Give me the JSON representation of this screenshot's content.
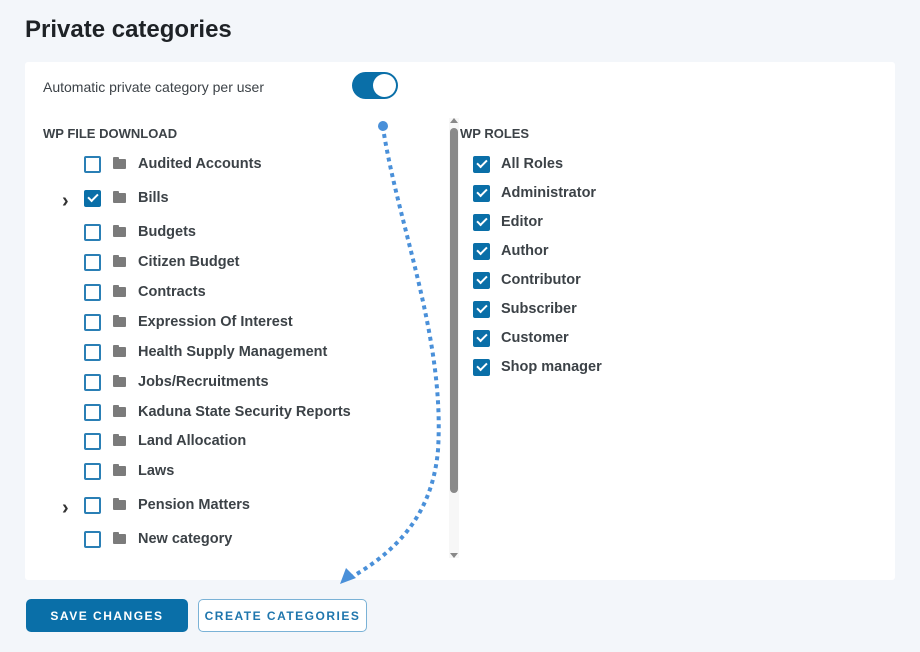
{
  "title": "Private categories",
  "toggle": {
    "label": "Automatic private category per user",
    "on": true
  },
  "wpfd": {
    "heading": "WP FILE DOWNLOAD",
    "items": [
      {
        "label": "Audited Accounts",
        "checked": false,
        "expandable": false
      },
      {
        "label": "Bills",
        "checked": true,
        "expandable": true
      },
      {
        "label": "Budgets",
        "checked": false,
        "expandable": false
      },
      {
        "label": "Citizen Budget",
        "checked": false,
        "expandable": false
      },
      {
        "label": "Contracts",
        "checked": false,
        "expandable": false
      },
      {
        "label": "Expression Of Interest",
        "checked": false,
        "expandable": false
      },
      {
        "label": "Health Supply Management",
        "checked": false,
        "expandable": false
      },
      {
        "label": "Jobs/Recruitments",
        "checked": false,
        "expandable": false
      },
      {
        "label": "Kaduna State Security Reports",
        "checked": false,
        "expandable": false
      },
      {
        "label": "Land Allocation",
        "checked": false,
        "expandable": false
      },
      {
        "label": "Laws",
        "checked": false,
        "expandable": false
      },
      {
        "label": "Pension Matters",
        "checked": false,
        "expandable": true
      },
      {
        "label": "New category",
        "checked": false,
        "expandable": false
      }
    ]
  },
  "roles": {
    "heading": "WP ROLES",
    "items": [
      {
        "label": "All Roles",
        "checked": true
      },
      {
        "label": "Administrator",
        "checked": true
      },
      {
        "label": "Editor",
        "checked": true
      },
      {
        "label": "Author",
        "checked": true
      },
      {
        "label": "Contributor",
        "checked": true
      },
      {
        "label": "Subscriber",
        "checked": true
      },
      {
        "label": "Customer",
        "checked": true
      },
      {
        "label": "Shop manager",
        "checked": true
      }
    ]
  },
  "buttons": {
    "save": "SAVE CHANGES",
    "create": "CREATE CATEGORIES"
  },
  "colors": {
    "accent": "#0a6fa8",
    "annotation": "#4a90d9"
  }
}
